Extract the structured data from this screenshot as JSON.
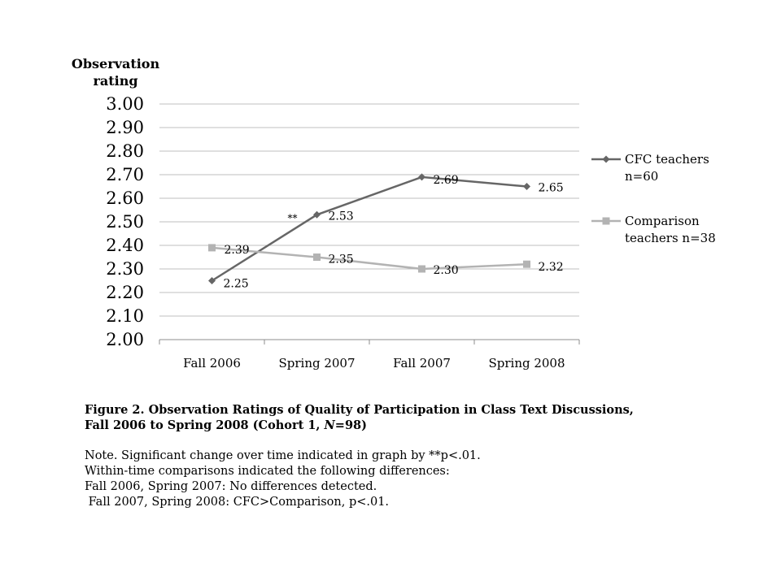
{
  "chart_data": {
    "type": "line",
    "ylabel": [
      "Observation",
      "rating"
    ],
    "xlabel": "",
    "categories": [
      "Fall 2006",
      "Spring 2007",
      "Fall 2007",
      "Spring 2008"
    ],
    "ylim": [
      2.0,
      3.0
    ],
    "yticks": [
      "2.00",
      "2.10",
      "2.20",
      "2.30",
      "2.40",
      "2.50",
      "2.60",
      "2.70",
      "2.80",
      "2.90",
      "3.00"
    ],
    "grid": true,
    "legend_position": "right",
    "series": [
      {
        "name_lines": [
          "CFC teachers",
          "n=60"
        ],
        "values": [
          2.25,
          2.53,
          2.69,
          2.65
        ],
        "labels": [
          "2.25",
          "2.53",
          "2.69",
          "2.65"
        ],
        "color": "#666666",
        "marker": "diamond"
      },
      {
        "name_lines": [
          "Comparison",
          "teachers n=38"
        ],
        "values": [
          2.39,
          2.35,
          2.3,
          2.32
        ],
        "labels": [
          "2.39",
          "2.35",
          "2.30",
          "2.32"
        ],
        "color": "#b3b3b3",
        "marker": "square"
      }
    ],
    "annotation": "**"
  },
  "caption": {
    "title_line1": "Figure 2. Observation Ratings of Quality of Participation in Class Text Discussions,",
    "title_line2_pre": "Fall 2006 to Spring 2008 (Cohort 1, ",
    "title_line2_n": "N",
    "title_line2_post": "=98)",
    "notes": [
      "Note. Significant change over time indicated in graph by **p<.01.",
      "Within-time comparisons indicated the following differences:",
      "Fall 2006, Spring 2007: No differences detected.",
      " Fall 2007, Spring 2008: CFC>Comparison, p<.01."
    ]
  }
}
